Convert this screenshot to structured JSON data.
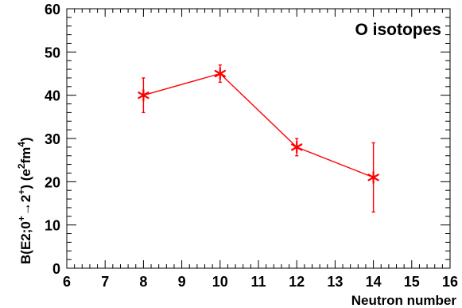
{
  "chart_data": {
    "type": "line",
    "annotation": "O isotopes",
    "xlabel": "Neutron number",
    "ylabel": {
      "prefix": "B(E2;0",
      "sup1": "+",
      "arrow": "→",
      "mid": "2",
      "sup2": "+",
      "close": ") (e",
      "sup3": "2",
      "unit": "fm",
      "sup4": "4",
      "end": ")"
    },
    "xlim": [
      6,
      16
    ],
    "ylim": [
      0,
      60
    ],
    "xticks": [
      "6",
      "7",
      "8",
      "9",
      "10",
      "11",
      "12",
      "13",
      "14",
      "15",
      "16"
    ],
    "yticks": [
      "0",
      "10",
      "20",
      "30",
      "40",
      "50",
      "60"
    ],
    "color": "#ff0000",
    "marker": "star",
    "grid": false,
    "series": [
      {
        "x": [
          8,
          10,
          12,
          14
        ],
        "y": [
          40,
          45,
          28,
          21
        ],
        "yerr": [
          4,
          2,
          2,
          8
        ]
      }
    ]
  }
}
